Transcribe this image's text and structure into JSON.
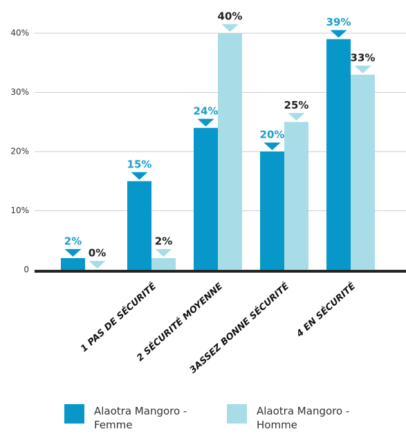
{
  "chart_data": {
    "type": "bar",
    "categories": [
      null,
      "1 PAS DE SÉCURITÉ",
      "2 SÉCURITÉ MOYENNE",
      "3ASSEZ BONNE SÉCURITÉ",
      "4 EN SÉCURITÉ"
    ],
    "series": [
      {
        "name": "Alaotra Mangoro - Femme",
        "color": "#0797c8",
        "values": [
          2,
          15,
          24,
          20,
          39
        ],
        "value_labels": [
          "2%",
          "15%",
          "24%",
          "20%",
          "39%"
        ]
      },
      {
        "name": "Alaotra Mangoro - Homme",
        "color": "#a8dce6",
        "values": [
          0,
          2,
          40,
          25,
          33
        ],
        "value_labels": [
          "0%",
          "2%",
          "40%",
          "25%",
          "33%"
        ]
      }
    ],
    "ylim": [
      0,
      40
    ],
    "yticks": [
      0,
      {
        "value": 10,
        "label": "10%"
      },
      {
        "value": 20,
        "label": "20%"
      },
      {
        "value": 30,
        "label": "30%"
      },
      {
        "value": 40,
        "label": "40%"
      }
    ],
    "grid": true
  }
}
